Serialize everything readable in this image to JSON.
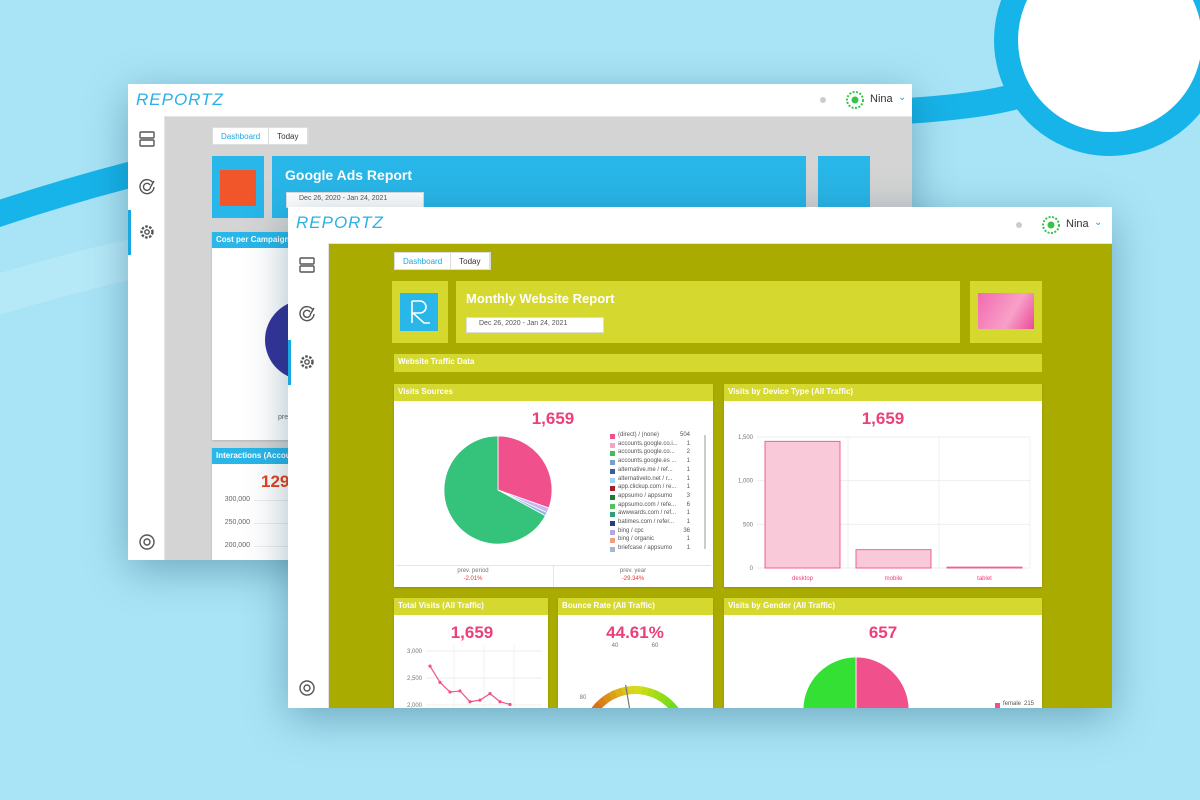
{
  "back_window": {
    "logo": "REPORTZ",
    "user": "Nina",
    "tabs": [
      "Dashboard",
      "Today"
    ],
    "report_title": "Google Ads Report",
    "date_range": "Dec 26, 2020 - Jan 24, 2021",
    "cost_panel": {
      "title": "Cost per Campaign",
      "footer_label": "prev. p"
    },
    "interactions_panel": {
      "title": "Interactions (Accou",
      "value": "129",
      "y_axis_labels": [
        "300,000",
        "250,000",
        "200,000"
      ]
    }
  },
  "front_window": {
    "logo": "REPORTZ",
    "user": "Nina",
    "tabs": [
      "Dashboard",
      "Today"
    ],
    "report_title": "Monthly Website Report",
    "date_range": "Dec 26, 2020 - Jan 24, 2021",
    "section_title": "Website Traffic Data",
    "visits_sources": {
      "type": "pie",
      "title": "Visits Sources",
      "total": "1,659",
      "slices": [
        {
          "value": 30.4,
          "color": "#f0508c"
        },
        {
          "value": 1.5,
          "color": "#c9b8f0"
        },
        {
          "value": 1,
          "color": "#8fb8ee"
        },
        {
          "value": 67.1,
          "color": "#35c27a"
        }
      ],
      "legend": [
        {
          "label": "(direct) / (none)",
          "value": 504,
          "color": "#f0508c"
        },
        {
          "label": "accounts.google.co.i...",
          "value": 1,
          "color": "#f5a3c0"
        },
        {
          "label": "accounts.google.co...",
          "value": 2,
          "color": "#3cbf5a"
        },
        {
          "label": "accounts.google.es ...",
          "value": 1,
          "color": "#7aa0c8"
        },
        {
          "label": "alternative.me / ref...",
          "value": 1,
          "color": "#3d5a99"
        },
        {
          "label": "alternativeto.net / r...",
          "value": 1,
          "color": "#9fd4f0"
        },
        {
          "label": "app.clickup.com / re...",
          "value": 1,
          "color": "#a02030"
        },
        {
          "label": "appsumo / appsumo",
          "value": 3,
          "color": "#1f7a3a"
        },
        {
          "label": "appsumo.com / refe...",
          "value": 6,
          "color": "#55c060"
        },
        {
          "label": "awwwards.com / ref...",
          "value": 1,
          "color": "#2f9e80"
        },
        {
          "label": "batimes.com / refer...",
          "value": 1,
          "color": "#2c3e80"
        },
        {
          "label": "bing / cpc",
          "value": 36,
          "color": "#b0a8e0"
        },
        {
          "label": "bing / organic",
          "value": 1,
          "color": "#f0a080"
        },
        {
          "label": "briefcase / appsumo",
          "value": 1,
          "color": "#a0b8d0"
        }
      ],
      "prev_period_label": "prev. period",
      "prev_period": "-2.01%",
      "prev_year_label": "prev. year",
      "prev_year": "-29.34%"
    },
    "device": {
      "type": "bar",
      "title": "Visits by Device Type (All Traffic)",
      "total": "1,659",
      "categories": [
        "desktop",
        "mobile",
        "tablet"
      ],
      "values": [
        1450,
        210,
        10
      ],
      "color": "#f9c8d9",
      "ylim": [
        0,
        1500
      ],
      "yticks": [
        0,
        500,
        {
          "value": 1000,
          "label": "1,000"
        },
        {
          "value": 1500,
          "label": "1,500"
        }
      ],
      "grid": true
    },
    "total_visits": {
      "type": "line",
      "title": "Total Visits (All Traffic)",
      "total": "1,659",
      "values": [
        2720,
        2420,
        2240,
        2260,
        2060,
        2090,
        2210,
        2060,
        2010
      ],
      "color": "#f0508c",
      "ylim": [
        2000,
        3000
      ],
      "yticks": [
        {
          "value": 2000,
          "label": "2,000"
        },
        {
          "value": 2500,
          "label": "2,500"
        },
        {
          "value": 3000,
          "label": "3,000"
        }
      ],
      "grid": true
    },
    "bounce_rate": {
      "type": "gauge",
      "title": "Bounce Rate (All Traffic)",
      "value": 44.61,
      "value_label": "44.61%",
      "gauge_lim": [
        0,
        100
      ],
      "gauge_labels": [
        "40",
        "60",
        "80"
      ]
    },
    "gender": {
      "type": "pie",
      "title": "Visits by Gender (All Traffic)",
      "total": "657",
      "slices": [
        {
          "value": 50,
          "color": "#f0508c"
        },
        {
          "value": 50,
          "color": "#33e033"
        }
      ],
      "legend": [
        {
          "label": "female",
          "value": 215,
          "color": "#f0508c"
        }
      ]
    }
  }
}
